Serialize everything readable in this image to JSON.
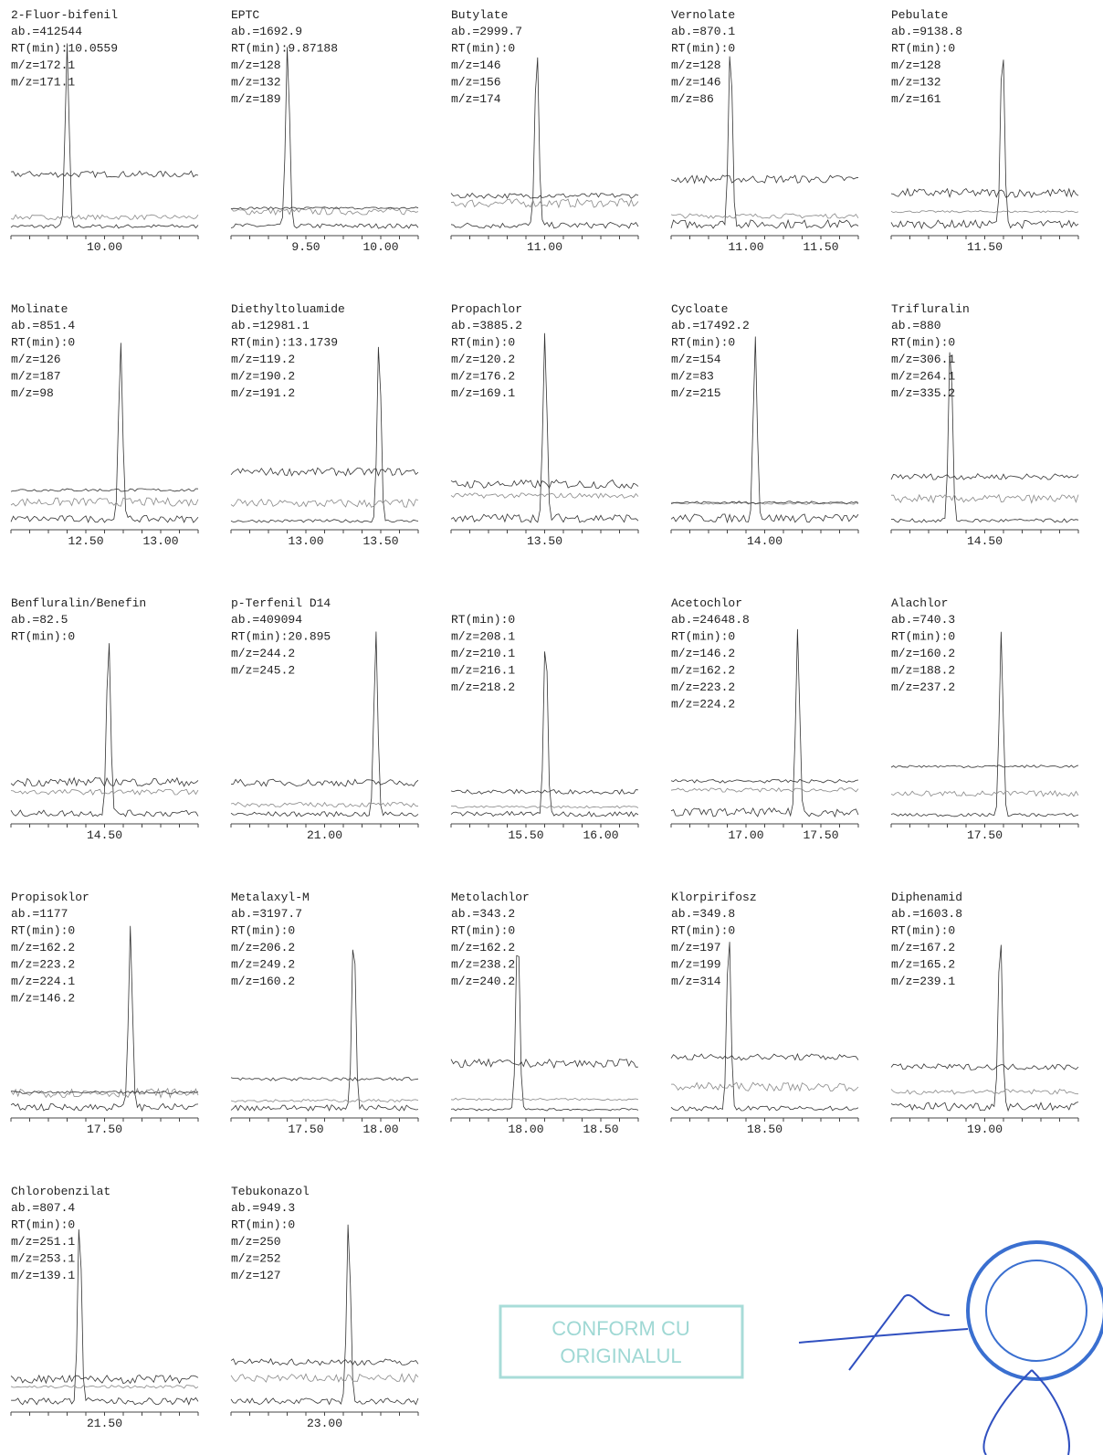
{
  "panels": [
    {
      "name": "2-Fluor-bifenil",
      "lines": [
        "ab.=412544",
        "RT(min):10.0559",
        "m/z=172.1",
        "m/z=171.1"
      ],
      "ticks": [
        "10.00"
      ]
    },
    {
      "name": "EPTC",
      "lines": [
        "ab.=1692.9",
        "RT(min):9.87188",
        "m/z=128",
        "m/z=132",
        "m/z=189"
      ],
      "ticks": [
        "9.50",
        "10.00"
      ]
    },
    {
      "name": "Butylate",
      "lines": [
        "ab.=2999.7",
        "RT(min):0",
        "m/z=146",
        "m/z=156",
        "m/z=174"
      ],
      "ticks": [
        "11.00"
      ]
    },
    {
      "name": "Vernolate",
      "lines": [
        "ab.=870.1",
        "RT(min):0",
        "m/z=128",
        "m/z=146",
        "m/z=86"
      ],
      "ticks": [
        "11.00",
        "11.50"
      ]
    },
    {
      "name": "Pebulate",
      "lines": [
        "ab.=9138.8",
        "RT(min):0",
        "m/z=128",
        "m/z=132",
        "m/z=161"
      ],
      "ticks": [
        "11.50"
      ]
    },
    {
      "name": "Molinate",
      "lines": [
        "ab.=851.4",
        "RT(min):0",
        "m/z=126",
        "m/z=187",
        "m/z=98"
      ],
      "ticks": [
        "12.50",
        "13.00"
      ]
    },
    {
      "name": "Diethyltoluamide",
      "lines": [
        "ab.=12981.1",
        "RT(min):13.1739",
        "m/z=119.2",
        "m/z=190.2",
        "m/z=191.2"
      ],
      "ticks": [
        "13.00",
        "13.50"
      ]
    },
    {
      "name": "Propachlor",
      "lines": [
        "ab.=3885.2",
        "RT(min):0",
        "m/z=120.2",
        "m/z=176.2",
        "m/z=169.1"
      ],
      "ticks": [
        "13.50"
      ]
    },
    {
      "name": "Cycloate",
      "lines": [
        "ab.=17492.2",
        "RT(min):0",
        "m/z=154",
        "m/z=83",
        "m/z=215"
      ],
      "ticks": [
        "14.00"
      ]
    },
    {
      "name": "Trifluralin",
      "lines": [
        "ab.=880",
        "RT(min):0",
        "m/z=306.1",
        "m/z=264.1",
        "m/z=335.2"
      ],
      "ticks": [
        "14.50"
      ]
    },
    {
      "name": "Benfluralin/Benefin",
      "lines": [
        "ab.=82.5",
        "RT(min):0"
      ],
      "ticks": [
        "14.50"
      ]
    },
    {
      "name": "p-Terfenil D14",
      "lines": [
        "ab.=409094",
        "RT(min):20.895",
        "m/z=244.2",
        "m/z=245.2"
      ],
      "ticks": [
        "21.00"
      ]
    },
    {
      "lines": [
        "RT(min):0",
        "m/z=208.1",
        "m/z=210.1",
        "m/z=216.1",
        "m/z=218.2"
      ],
      "ticks": [
        "15.50",
        "16.00"
      ]
    },
    {
      "name": "Acetochlor",
      "lines": [
        "ab.=24648.8",
        "RT(min):0",
        "m/z=146.2",
        "m/z=162.2",
        "m/z=223.2",
        "m/z=224.2"
      ],
      "ticks": [
        "17.00",
        "17.50"
      ]
    },
    {
      "name": "Alachlor",
      "lines": [
        "ab.=740.3",
        "RT(min):0",
        "m/z=160.2",
        "m/z=188.2",
        "m/z=237.2"
      ],
      "ticks": [
        "17.50"
      ]
    },
    {
      "name": "Propisoklor",
      "lines": [
        "ab.=1177",
        "RT(min):0",
        "m/z=162.2",
        "m/z=223.2",
        "m/z=224.1",
        "m/z=146.2"
      ],
      "ticks": [
        "17.50"
      ]
    },
    {
      "name": "Metalaxyl-M",
      "lines": [
        "ab.=3197.7",
        "RT(min):0",
        "m/z=206.2",
        "m/z=249.2",
        "m/z=160.2"
      ],
      "ticks": [
        "17.50",
        "18.00"
      ]
    },
    {
      "name": "Metolachlor",
      "lines": [
        "ab.=343.2",
        "RT(min):0",
        "m/z=162.2",
        "m/z=238.2",
        "m/z=240.2"
      ],
      "ticks": [
        "18.00",
        "18.50"
      ]
    },
    {
      "name": "Klorpirifosz",
      "lines": [
        "ab.=349.8",
        "RT(min):0",
        "m/z=197",
        "m/z=199",
        "m/z=314"
      ],
      "ticks": [
        "18.50"
      ]
    },
    {
      "name": "Diphenamid",
      "lines": [
        "ab.=1603.8",
        "RT(min):0",
        "m/z=167.2",
        "m/z=165.2",
        "m/z=239.1"
      ],
      "ticks": [
        "19.00"
      ]
    },
    {
      "name": "Chlorobenzilat",
      "lines": [
        "ab.=807.4",
        "RT(min):0",
        "m/z=251.1",
        "m/z=253.1",
        "m/z=139.1"
      ],
      "ticks": [
        "21.50"
      ]
    },
    {
      "name": "Tebukonazol",
      "lines": [
        "ab.=949.3",
        "RT(min):0",
        "m/z=250",
        "m/z=252",
        "m/z=127"
      ],
      "ticks": [
        "23.00"
      ]
    }
  ],
  "stamp": {
    "line1": "CONFORM CU",
    "line2": "ORIGINALUL"
  }
}
